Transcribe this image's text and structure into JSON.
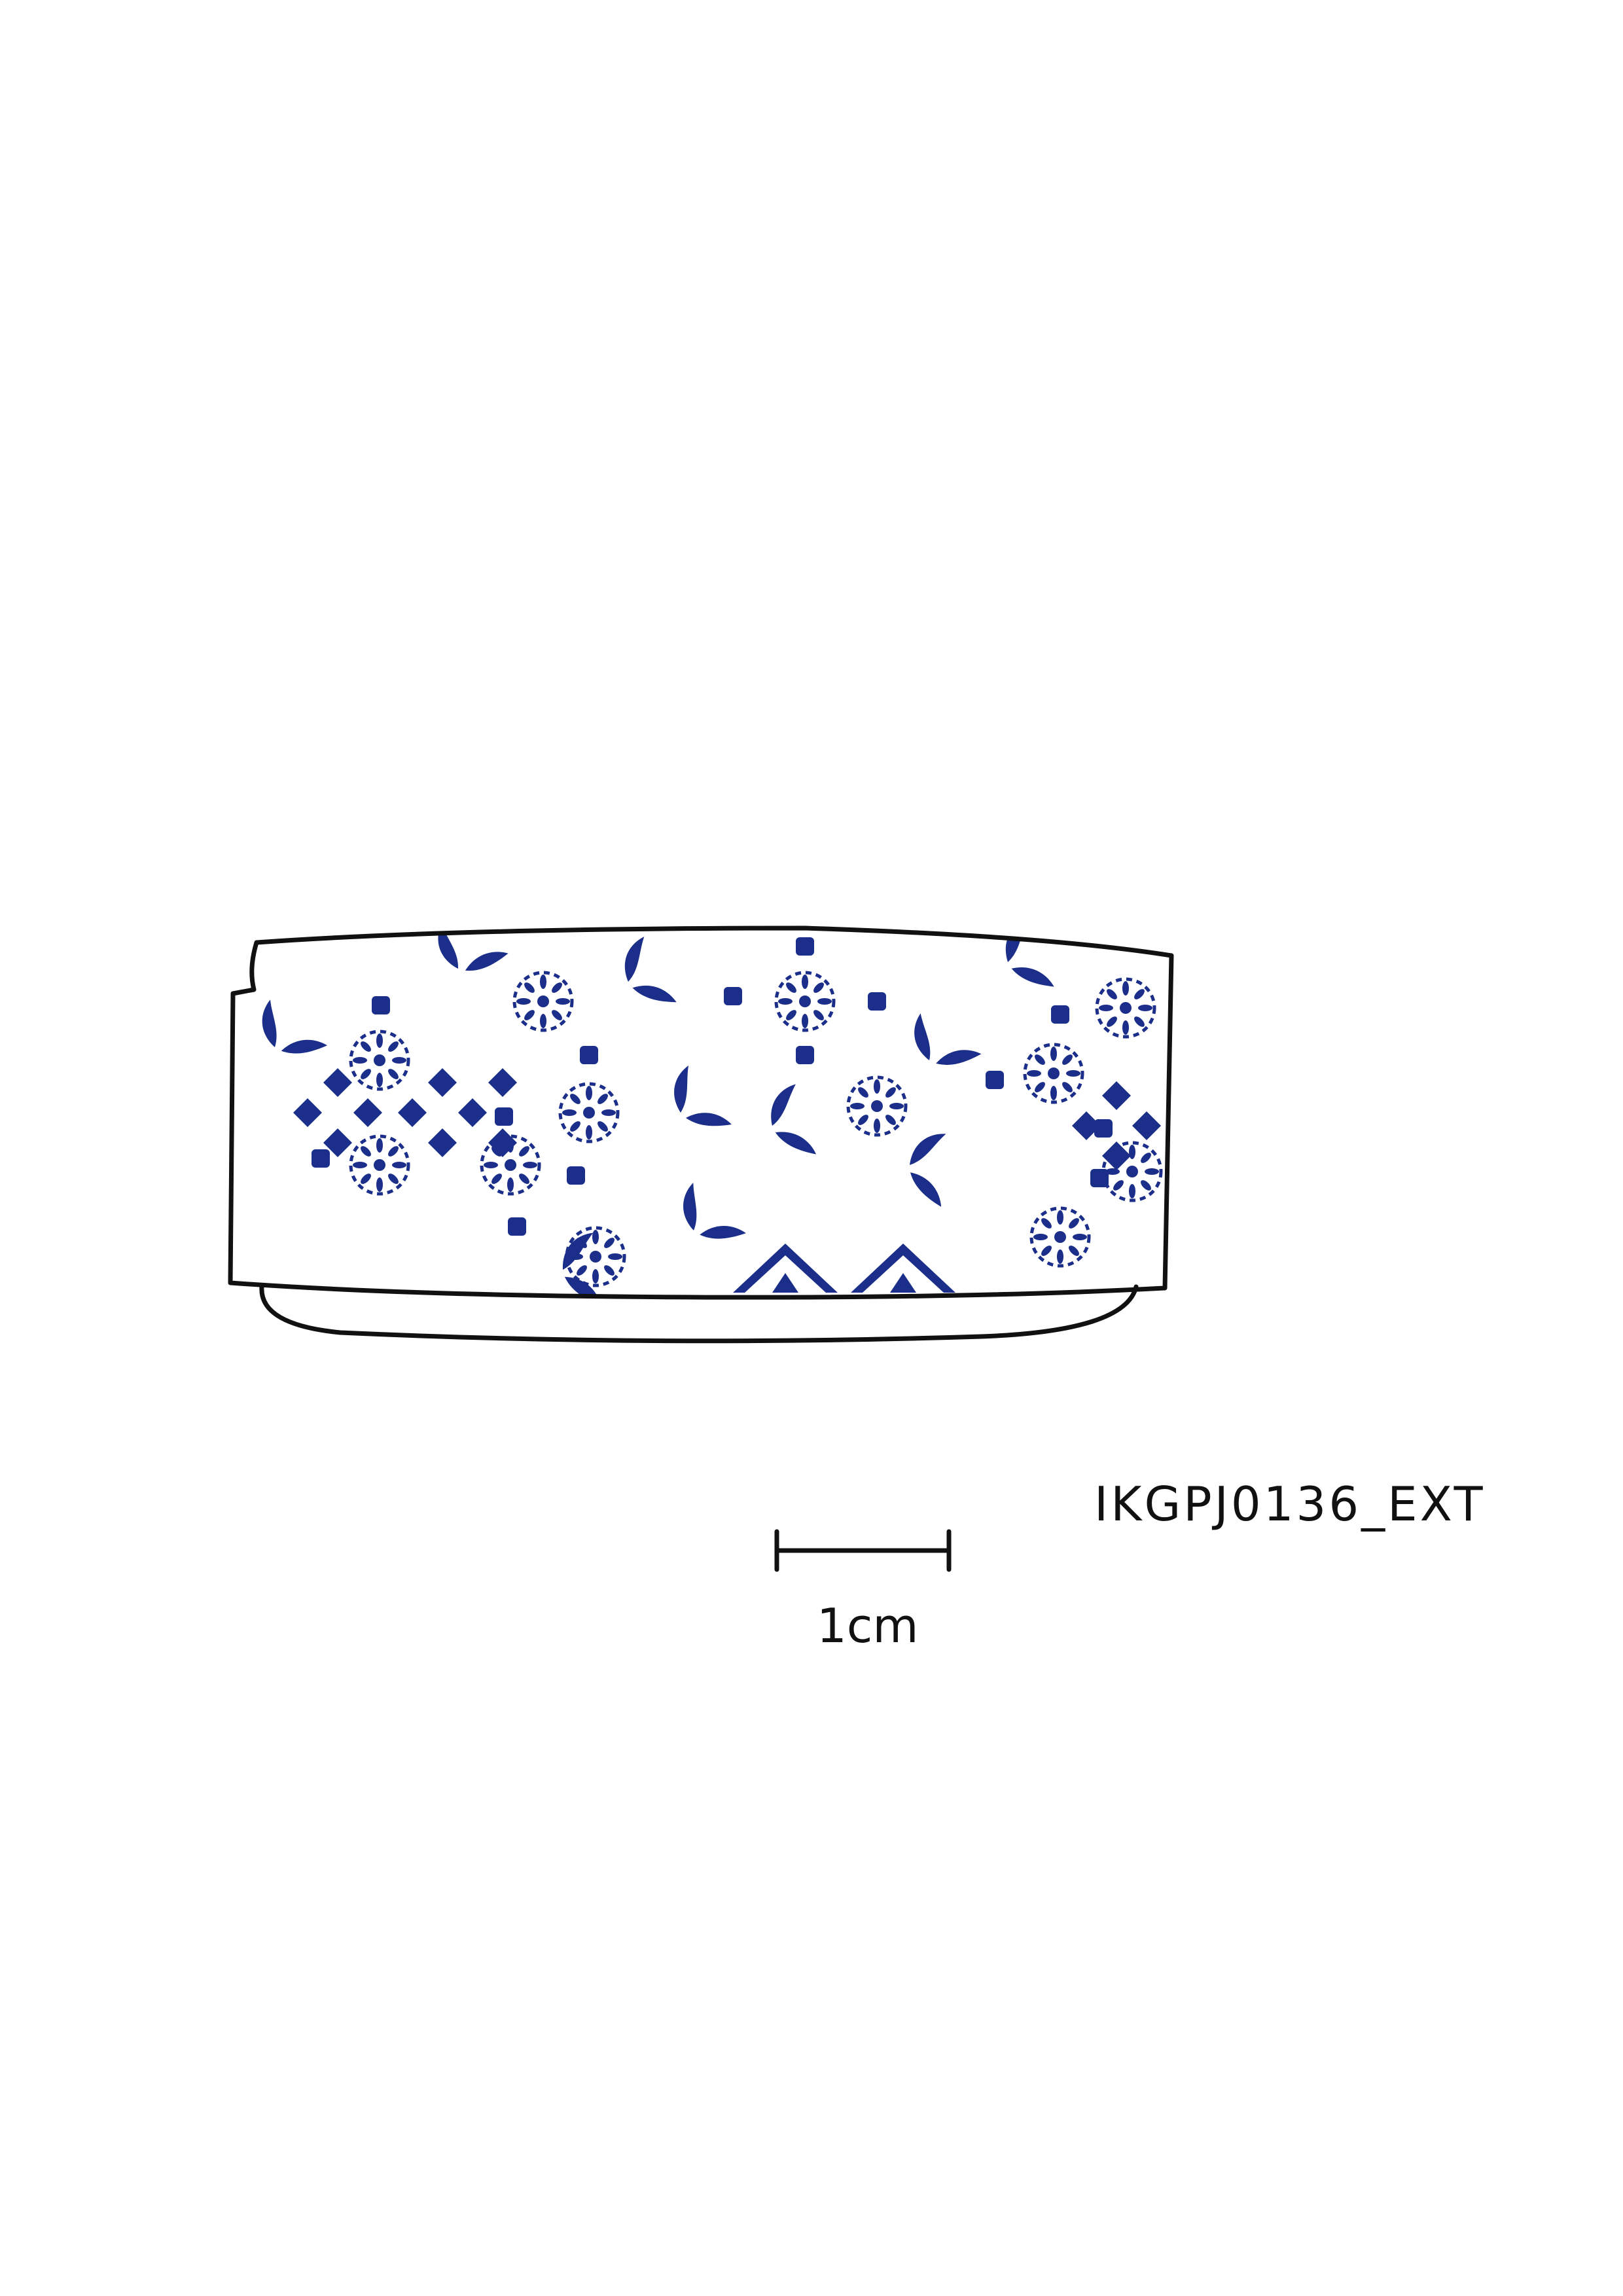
{
  "drawing": {
    "catalogue_id": "IKGPJ0136_EXT",
    "scale_bar_label": "1cm",
    "decoration_motifs": [
      "diamond-lattice",
      "rosette",
      "leaf-sprig",
      "square-dot"
    ]
  },
  "colors": {
    "outline": "#111111",
    "cobalt_blue": "#1b2e8a",
    "background": "#ffffff"
  }
}
